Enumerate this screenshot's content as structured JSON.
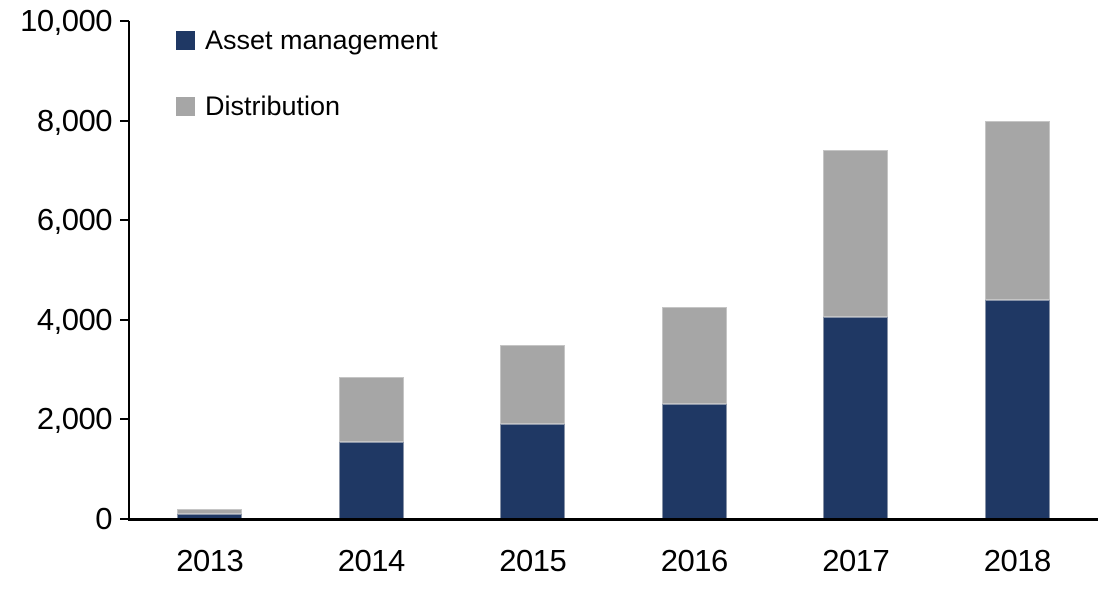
{
  "chart_data": {
    "type": "bar",
    "stacked": true,
    "title": "",
    "xlabel": "",
    "ylabel": "",
    "categories": [
      "2013",
      "2014",
      "2015",
      "2016",
      "2017",
      "2018"
    ],
    "series": [
      {
        "name": "Asset management",
        "color": "#1F3864",
        "values": [
          100,
          1550,
          1900,
          2300,
          4050,
          4400
        ]
      },
      {
        "name": "Distribution",
        "color": "#A6A6A6",
        "values": [
          100,
          1300,
          1600,
          1950,
          3350,
          3600
        ]
      }
    ],
    "totals": [
      200,
      2850,
      3500,
      4250,
      7400,
      8000
    ],
    "ylim": [
      0,
      10000
    ],
    "yticks": [
      0,
      2000,
      4000,
      6000,
      8000,
      10000
    ],
    "ytick_labels": [
      "0",
      "2,000",
      "4,000",
      "6,000",
      "8,000",
      "10,000"
    ],
    "grid": false,
    "legend_position": "top-left-inside"
  },
  "legend": {
    "items": [
      {
        "label": "Asset management",
        "color": "#1F3864"
      },
      {
        "label": "Distribution",
        "color": "#A6A6A6"
      }
    ]
  },
  "colors": {
    "axis": "#000000",
    "background": "#FFFFFF"
  }
}
